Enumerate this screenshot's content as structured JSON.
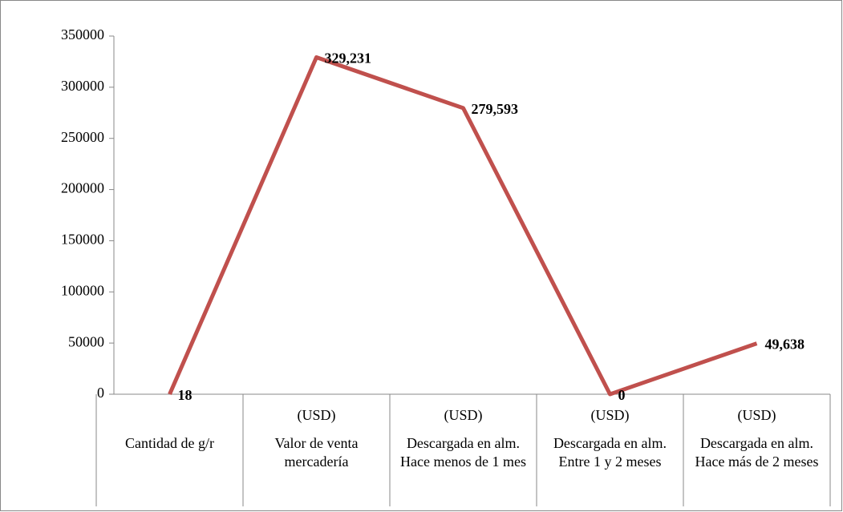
{
  "chart_data": {
    "type": "line",
    "category_units": [
      null,
      "(USD)",
      "(USD)",
      "(USD)",
      "(USD)"
    ],
    "categories": [
      "Cantidad de g/r",
      "Valor de venta mercadería",
      "Descargada en alm. Hace menos de 1 mes",
      "Descargada en alm. Entre 1 y 2 meses",
      "Descargada en alm. Hace más de 2 meses"
    ],
    "values": [
      18,
      329231,
      279593,
      0,
      49638
    ],
    "value_labels": [
      "18",
      "329,231",
      "279,593",
      "0",
      "49,638"
    ],
    "color": "#c0504d",
    "ylim": [
      0,
      350000
    ],
    "yticks": [
      0,
      50000,
      100000,
      150000,
      200000,
      250000,
      300000,
      350000
    ],
    "grid": false
  }
}
